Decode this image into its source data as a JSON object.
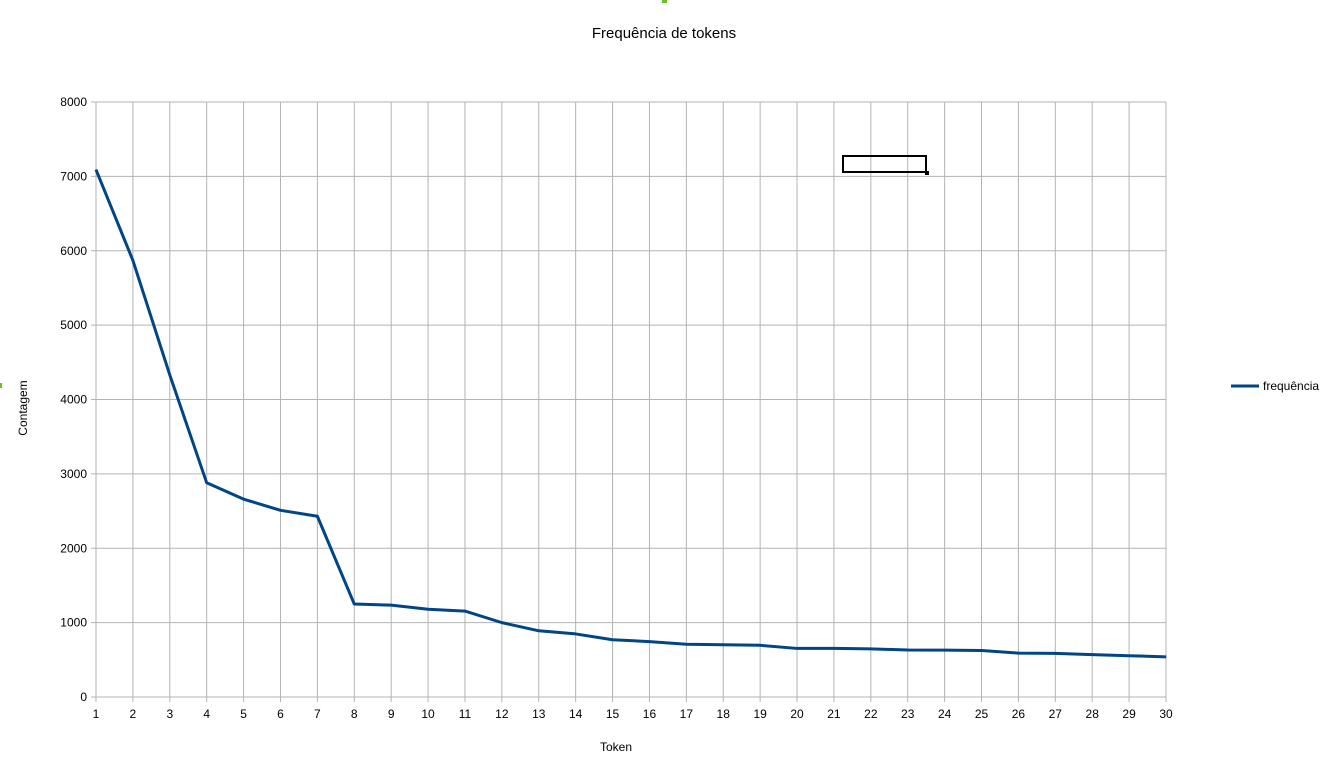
{
  "chart_data": {
    "type": "line",
    "title": "Frequência de tokens",
    "xlabel": "Token",
    "ylabel": "Contagem",
    "x": [
      1,
      2,
      3,
      4,
      5,
      6,
      7,
      8,
      9,
      10,
      11,
      12,
      13,
      14,
      15,
      16,
      17,
      18,
      19,
      20,
      21,
      22,
      23,
      24,
      25,
      26,
      27,
      28,
      29,
      30
    ],
    "series": [
      {
        "name": "frequência",
        "color": "#004586",
        "values": [
          7090,
          5870,
          4330,
          2880,
          2660,
          2510,
          2430,
          1250,
          1235,
          1180,
          1155,
          1000,
          890,
          848,
          770,
          745,
          710,
          703,
          695,
          653,
          653,
          647,
          632,
          630,
          625,
          590,
          587,
          570,
          555,
          540
        ]
      }
    ],
    "ylim": [
      0,
      8000
    ],
    "yticks": [
      0,
      1000,
      2000,
      3000,
      4000,
      5000,
      6000,
      7000,
      8000
    ],
    "grid": true,
    "legend_position": "right"
  }
}
